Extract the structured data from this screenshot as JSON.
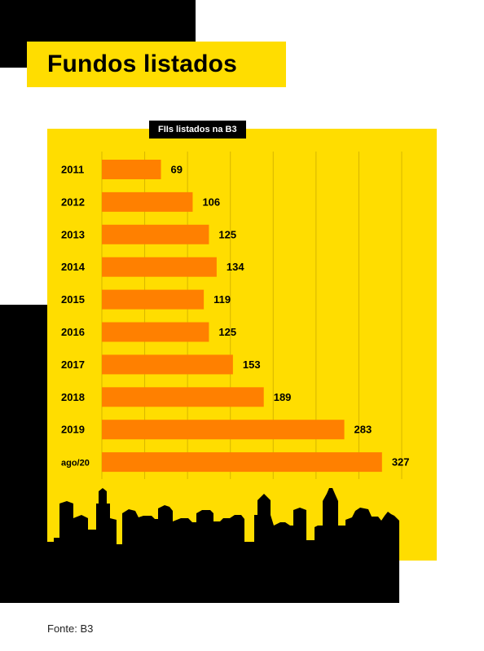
{
  "title": "Fundos listados",
  "subtitle": "FIIs listados na B3",
  "source": "Fonte: B3",
  "colors": {
    "accent": "#FFDD00",
    "bar": "#FF8000",
    "dark": "#000000"
  },
  "chart_data": {
    "type": "bar",
    "orientation": "horizontal",
    "title": "FIIs listados na B3",
    "categories": [
      "2011",
      "2012",
      "2013",
      "2014",
      "2015",
      "2016",
      "2017",
      "2018",
      "2019",
      "ago/20"
    ],
    "values": [
      69,
      106,
      125,
      134,
      119,
      125,
      153,
      189,
      283,
      327
    ],
    "xlim": [
      0,
      350
    ],
    "grid": true,
    "legend": "none"
  }
}
